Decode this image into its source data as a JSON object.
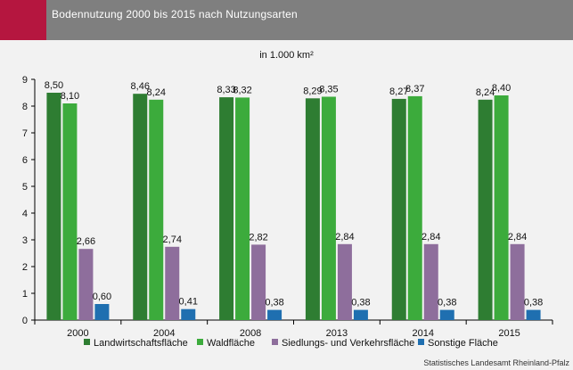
{
  "header": {
    "title": "Bodennutzung 2000 bis 2015 nach Nutzungsarten"
  },
  "source": "Statistisches Landesamt Rheinland-Pfalz",
  "chart_data": {
    "type": "bar",
    "title": "Bodennutzung 2000 bis 2015 nach Nutzungsarten",
    "subtitle": "in 1.000 km²",
    "xlabel": "",
    "ylabel": "",
    "ylim": [
      0,
      9
    ],
    "yticks": [
      "0",
      "1",
      "2",
      "3",
      "4",
      "5",
      "6",
      "7",
      "8",
      "9"
    ],
    "grid": false,
    "legend": "bottom",
    "categories": [
      "2000",
      "2004",
      "2008",
      "2013",
      "2014",
      "2015"
    ],
    "series": [
      {
        "name": "Landwirtschaftsfläche",
        "color": "#2e7d32",
        "values": [
          8.5,
          8.46,
          8.33,
          8.29,
          8.27,
          8.24
        ],
        "labels": [
          "8,50",
          "8,46",
          "8,33",
          "8,29",
          "8,27",
          "8,24"
        ]
      },
      {
        "name": "Waldfläche",
        "color": "#3cab3c",
        "values": [
          8.1,
          8.24,
          8.32,
          8.35,
          8.37,
          8.4
        ],
        "labels": [
          "8,10",
          "8,24",
          "8,32",
          "8,35",
          "8,37",
          "8,40"
        ]
      },
      {
        "name": "Siedlungs- und Verkehrsfläche",
        "color": "#8e6e9c",
        "values": [
          2.66,
          2.74,
          2.82,
          2.84,
          2.84,
          2.84
        ],
        "labels": [
          "2,66",
          "2,74",
          "2,82",
          "2,84",
          "2,84",
          "2,84"
        ]
      },
      {
        "name": "Sonstige Fläche",
        "color": "#1f6fb0",
        "values": [
          0.6,
          0.41,
          0.38,
          0.38,
          0.38,
          0.38
        ],
        "labels": [
          "0,60",
          "0,41",
          "0,38",
          "0,38",
          "0,38",
          "0,38"
        ]
      }
    ]
  }
}
